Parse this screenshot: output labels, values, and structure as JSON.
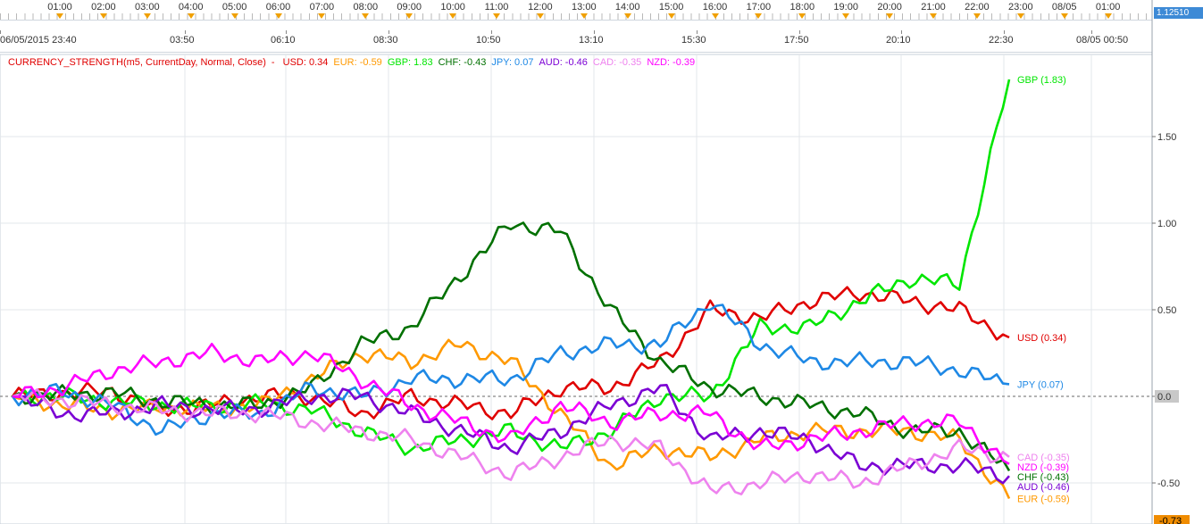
{
  "top_scale": {
    "hours": [
      "01:00",
      "02:00",
      "03:00",
      "04:00",
      "05:00",
      "06:00",
      "07:00",
      "08:00",
      "09:00",
      "10:00",
      "11:00",
      "12:00",
      "13:00",
      "14:00",
      "15:00",
      "16:00",
      "17:00",
      "18:00",
      "19:00",
      "20:00",
      "21:00",
      "22:00",
      "23:00",
      "08/05",
      "01:00"
    ],
    "price_label": "1.12510"
  },
  "time_axis": [
    "06/05/2015 23:40",
    "03:50",
    "06:10",
    "08:30",
    "10:50",
    "13:10",
    "15:30",
    "17:50",
    "20:10",
    "22:30",
    "08/05 00:50"
  ],
  "indicator": {
    "title": "CURRENCY_STRENGTH(m5, CurrentDay, Normal, Close)",
    "separator": "-",
    "legend": [
      {
        "label": "USD: 0.34",
        "color": "#e00000"
      },
      {
        "label": "EUR: -0.59",
        "color": "#ff9900"
      },
      {
        "label": "GBP: 1.83",
        "color": "#00e600"
      },
      {
        "label": "CHF: -0.43",
        "color": "#007000"
      },
      {
        "label": "JPY: 0.07",
        "color": "#1e88e5"
      },
      {
        "label": "AUD: -0.46",
        "color": "#7b00d4"
      },
      {
        "label": "CAD: -0.35",
        "color": "#ee82ee"
      },
      {
        "label": "NZD: -0.39",
        "color": "#ff00ff"
      }
    ],
    "title_color": "#e00000"
  },
  "price_axis": {
    "ticks": [
      "1.50",
      "1.00",
      "0.50",
      "0.0",
      "-0.50"
    ],
    "current_label": "-0.73"
  },
  "chart_data": {
    "type": "line",
    "title": "CURRENCY_STRENGTH(m5, CurrentDay, Normal, Close)",
    "ylim": [
      -0.73,
      1.9
    ],
    "grid": true,
    "x": [
      0,
      5,
      10,
      15,
      20,
      25,
      30,
      35,
      40,
      45,
      50,
      55,
      60,
      65,
      70,
      75,
      80,
      85,
      90,
      95,
      100
    ],
    "series": [
      {
        "name": "USD",
        "color": "#e00000",
        "end_label": "USD (0.34)",
        "values": [
          0,
          0.02,
          0.03,
          -0.08,
          -0.05,
          0.0,
          0.0,
          -0.1,
          0.0,
          -0.05,
          -0.1,
          0.05,
          0.05,
          0.2,
          0.5,
          0.45,
          0.55,
          0.6,
          0.55,
          0.5,
          0.34
        ]
      },
      {
        "name": "EUR",
        "color": "#ff9900",
        "end_label": "EUR (-0.59)",
        "values": [
          0,
          -0.05,
          -0.08,
          -0.06,
          -0.07,
          -0.05,
          0.1,
          0.25,
          0.2,
          0.3,
          0.2,
          -0.1,
          -0.4,
          -0.3,
          -0.35,
          -0.25,
          -0.2,
          -0.2,
          -0.2,
          -0.25,
          -0.59
        ]
      },
      {
        "name": "GBP",
        "color": "#00e600",
        "end_label": "GBP (1.83)",
        "values": [
          0,
          0.0,
          -0.03,
          -0.05,
          -0.06,
          -0.04,
          -0.08,
          -0.2,
          -0.3,
          -0.25,
          -0.2,
          -0.3,
          -0.2,
          0.0,
          0.0,
          0.4,
          0.4,
          0.55,
          0.68,
          0.65,
          1.83
        ]
      },
      {
        "name": "CHF",
        "color": "#007000",
        "end_label": "CHF (-0.43)",
        "values": [
          0,
          0.01,
          0.02,
          -0.03,
          -0.05,
          -0.05,
          0.05,
          0.3,
          0.4,
          0.7,
          1.0,
          0.95,
          0.5,
          0.2,
          0.05,
          0.0,
          -0.05,
          -0.1,
          -0.2,
          -0.2,
          -0.43
        ]
      },
      {
        "name": "JPY",
        "color": "#1e88e5",
        "end_label": "JPY (0.07)",
        "values": [
          0,
          0.03,
          -0.05,
          -0.2,
          -0.1,
          -0.1,
          0.05,
          0.0,
          0.1,
          0.1,
          0.1,
          0.25,
          0.3,
          0.3,
          0.55,
          0.3,
          0.2,
          0.2,
          0.2,
          0.15,
          0.07
        ]
      },
      {
        "name": "AUD",
        "color": "#7b00d4",
        "end_label": "AUD (-0.46)",
        "values": [
          0,
          -0.1,
          -0.1,
          -0.05,
          -0.08,
          -0.07,
          0.0,
          0.0,
          -0.1,
          -0.2,
          -0.3,
          -0.2,
          -0.05,
          0.05,
          -0.25,
          -0.2,
          -0.25,
          -0.4,
          -0.4,
          -0.4,
          -0.46
        ]
      },
      {
        "name": "CAD",
        "color": "#ee82ee",
        "end_label": "CAD (-0.35)",
        "values": [
          0,
          -0.02,
          -0.05,
          -0.08,
          -0.1,
          -0.1,
          -0.15,
          -0.2,
          -0.25,
          -0.35,
          -0.45,
          -0.35,
          -0.25,
          -0.3,
          -0.55,
          -0.5,
          -0.45,
          -0.5,
          -0.4,
          -0.3,
          -0.35
        ]
      },
      {
        "name": "NZD",
        "color": "#ff00ff",
        "end_label": "NZD (-0.39)",
        "values": [
          0,
          0.05,
          0.15,
          0.2,
          0.25,
          0.2,
          0.25,
          0.1,
          -0.05,
          -0.15,
          -0.25,
          -0.05,
          -0.15,
          -0.1,
          -0.1,
          -0.3,
          -0.25,
          -0.2,
          -0.15,
          -0.15,
          -0.39
        ]
      }
    ]
  }
}
